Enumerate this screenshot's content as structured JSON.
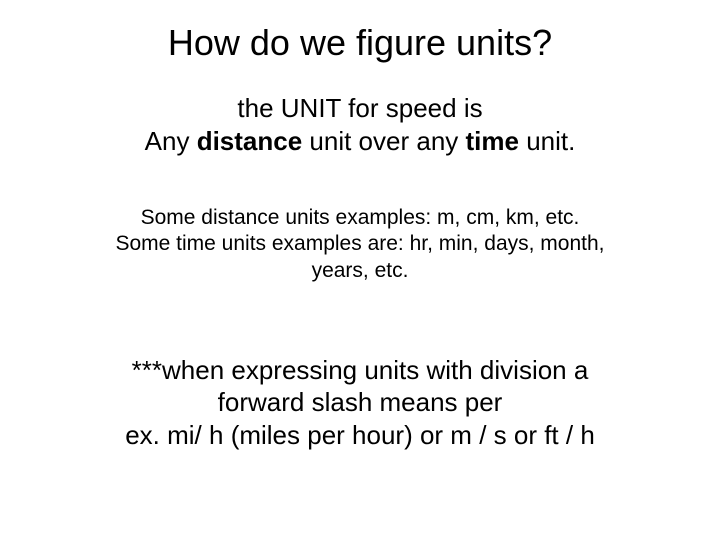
{
  "slide": {
    "title": "How do we figure units?",
    "intro_line1_pre": "the UNIT for speed is",
    "intro_line2_a": "Any ",
    "intro_line2_b": "distance",
    "intro_line2_c": " unit over any ",
    "intro_line2_d": "time",
    "intro_line2_e": " unit.",
    "examples_line1": "Some distance units examples: m, cm, km, etc.",
    "examples_line2": "Some time units examples are: hr, min, days, month,",
    "examples_line3": "years, etc.",
    "note_line1": "***when expressing units with division a",
    "note_line2": "forward slash means per",
    "note_line3": "ex. mi/ h (miles per hour) or m / s or ft / h"
  },
  "style": {
    "background_color": "#ffffff",
    "text_color": "#000000",
    "title_fontsize": 36,
    "body_fontsize": 26,
    "example_fontsize": 21,
    "font_family": "Arial"
  }
}
